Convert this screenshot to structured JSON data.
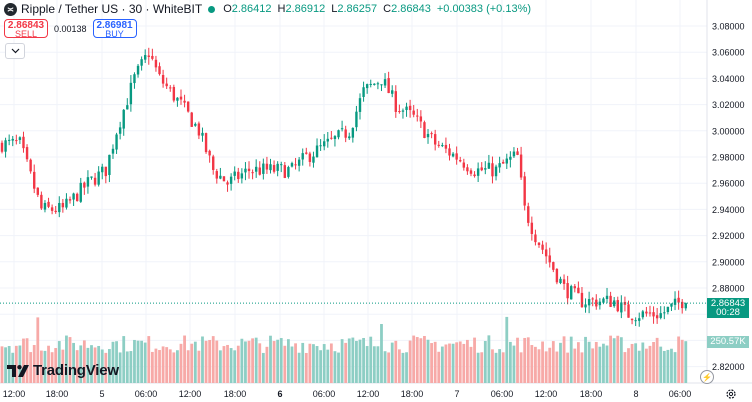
{
  "header": {
    "title": "Ripple / Tether US · 30 · WhiteBIT",
    "open_label": "O",
    "open": "2.86412",
    "high_label": "H",
    "high": "2.86912",
    "low_label": "L",
    "low": "2.86257",
    "close_label": "C",
    "close": "2.86843",
    "change": "+0.00383 (+0.13%)"
  },
  "trade": {
    "sell_price": "2.86843",
    "sell_label": "SELL",
    "spread": "0.00138",
    "buy_price": "2.86981",
    "buy_label": "BUY"
  },
  "price_tag": {
    "price": "2.86843",
    "countdown": "00:28"
  },
  "volume_tag": {
    "value": "250.57K"
  },
  "brand": {
    "name": "TradingView"
  },
  "icons": [
    "ripple-logo-icon",
    "chevron-down-icon",
    "tradingview-logo-icon",
    "bolt-icon",
    "gear-icon"
  ],
  "colors": {
    "up": "#089981",
    "down": "#f23645",
    "up_volume": "#8dcec4",
    "down_volume": "#f7a9a7",
    "buy": "#2962ff"
  },
  "chart_data": {
    "type": "candlestick",
    "y_ticks": [
      "3.08000",
      "3.06000",
      "3.04000",
      "3.02000",
      "3.00000",
      "2.98000",
      "2.96000",
      "2.94000",
      "2.92000",
      "2.90000",
      "2.88000",
      "2.86000",
      "2.84000",
      "2.82000"
    ],
    "ylim": [
      2.82,
      3.08
    ],
    "x_ticks": [
      "12:00",
      "18:00",
      "5",
      "06:00",
      "12:00",
      "18:00",
      "6",
      "06:00",
      "12:00",
      "18:00",
      "7",
      "06:00",
      "12:00",
      "18:00",
      "8",
      "06:00"
    ],
    "bold_x_ticks": [
      "6"
    ],
    "current_price": 2.86843,
    "anchors": [
      [
        0,
        2.99
      ],
      [
        6,
        2.99
      ],
      [
        12,
        2.94
      ],
      [
        18,
        2.94
      ],
      [
        25,
        2.96
      ],
      [
        30,
        2.97
      ],
      [
        33,
        3.0
      ],
      [
        38,
        3.04
      ],
      [
        42,
        3.06
      ],
      [
        45,
        3.04
      ],
      [
        51,
        3.02
      ],
      [
        56,
        3.0
      ],
      [
        60,
        2.97
      ],
      [
        64,
        2.96
      ],
      [
        70,
        2.97
      ],
      [
        76,
        2.97
      ],
      [
        82,
        2.97
      ],
      [
        86,
        2.98
      ],
      [
        92,
        2.99
      ],
      [
        98,
        3.0
      ],
      [
        102,
        3.03
      ],
      [
        107,
        3.04
      ],
      [
        111,
        3.02
      ],
      [
        116,
        3.01
      ],
      [
        122,
        2.99
      ],
      [
        128,
        2.98
      ],
      [
        133,
        2.97
      ],
      [
        139,
        2.97
      ],
      [
        144,
        2.98
      ],
      [
        145,
        2.98
      ],
      [
        147,
        2.94
      ],
      [
        150,
        2.92
      ],
      [
        154,
        2.9
      ],
      [
        158,
        2.88
      ],
      [
        163,
        2.87
      ],
      [
        168,
        2.87
      ],
      [
        172,
        2.87
      ],
      [
        176,
        2.86
      ],
      [
        181,
        2.86
      ],
      [
        185,
        2.86
      ],
      [
        191,
        2.87
      ]
    ]
  }
}
